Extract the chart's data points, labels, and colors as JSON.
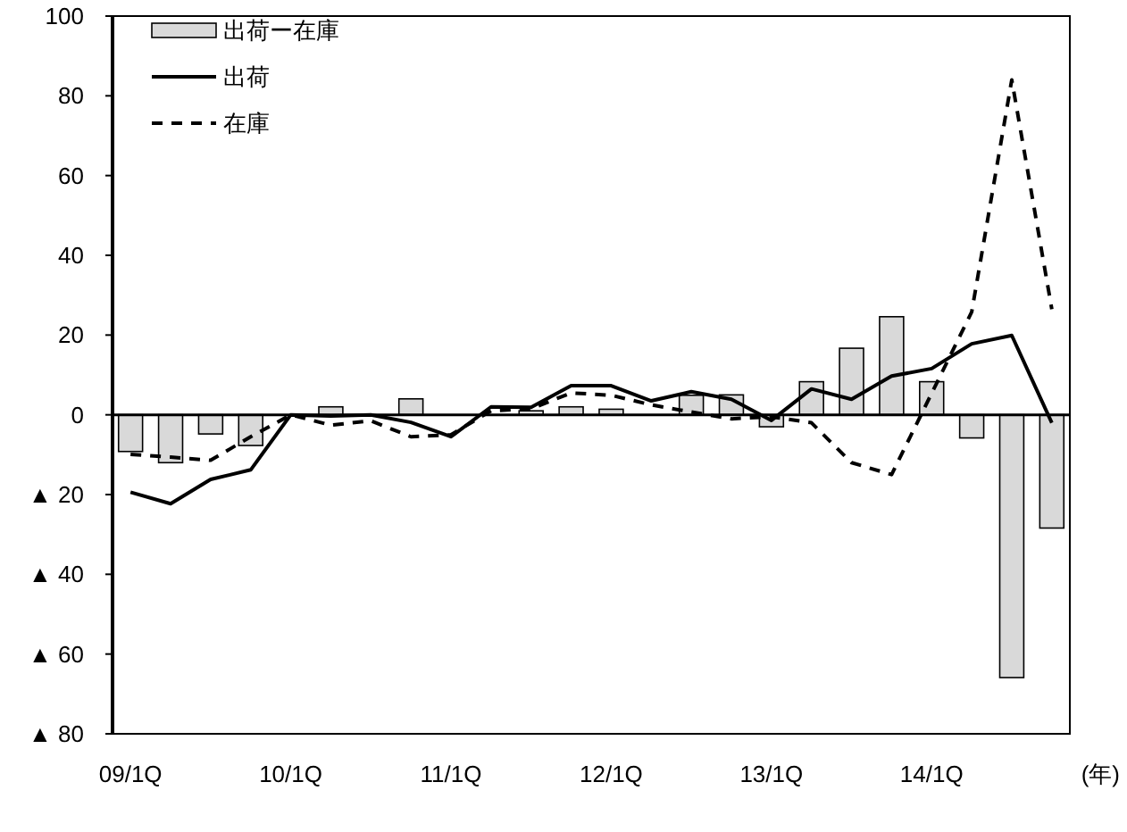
{
  "chart_data": {
    "type": "bar",
    "xlabel": "(年)",
    "categories": [
      "09/1Q",
      null,
      null,
      null,
      "10/1Q",
      null,
      null,
      null,
      "11/1Q",
      null,
      null,
      null,
      "12/1Q",
      null,
      null,
      null,
      "13/1Q",
      null,
      null,
      null,
      "14/1Q",
      null,
      null,
      null
    ],
    "ylim": [
      -80,
      100
    ],
    "yticks": [
      {
        "value": -80,
        "label": "▲ 80"
      },
      {
        "value": -60,
        "label": "▲ 60"
      },
      {
        "value": -40,
        "label": "▲ 40"
      },
      {
        "value": -20,
        "label": "▲ 20"
      },
      0,
      20,
      40,
      60,
      80,
      100
    ],
    "legend": "top left",
    "series": [
      {
        "name": "出荷ー在庫",
        "color": "#d9d9d9",
        "values": [
          -9.2,
          -12,
          -4.8,
          -7.7,
          null,
          2,
          null,
          4,
          null,
          null,
          1,
          2,
          1.4,
          null,
          4.9,
          5,
          -3,
          8.3,
          16.7,
          24.6,
          8.3,
          -5.8,
          -65.9,
          -28.4
        ]
      },
      {
        "name": "出荷",
        "type": "line",
        "color": "#000000",
        "line_style": "solid",
        "values": [
          -19.4,
          -22.3,
          -16.2,
          -13.8,
          0,
          -0.3,
          0,
          -1.9,
          -5.5,
          2,
          1.9,
          7.3,
          7.3,
          3.5,
          5.8,
          3.9,
          -1.4,
          6.5,
          3.9,
          9.7,
          11.6,
          17.8,
          19.9,
          -2
        ]
      },
      {
        "name": "在庫",
        "type": "line",
        "color": "#000000",
        "line_style": "dashed",
        "values": [
          -9.9,
          -10.6,
          -11.4,
          -5.5,
          0,
          -2.6,
          -1.5,
          -5.5,
          -5,
          1,
          1.5,
          5.5,
          4.9,
          2.5,
          0.7,
          -1,
          -0.5,
          -2,
          -12,
          -15,
          5.4,
          25.8,
          84,
          26.5
        ]
      }
    ]
  }
}
